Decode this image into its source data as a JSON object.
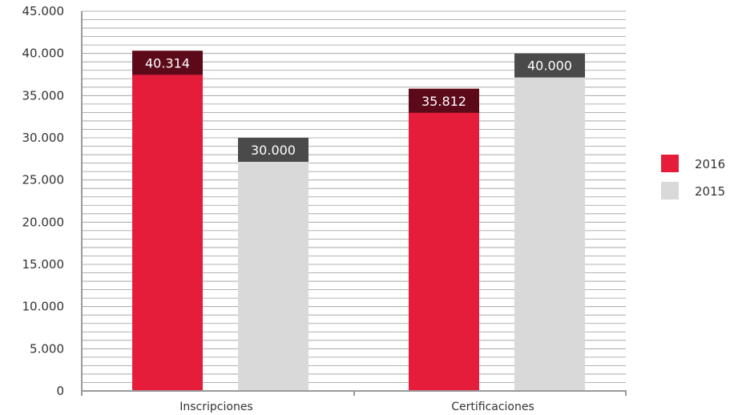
{
  "chart_data": {
    "type": "bar",
    "title": "",
    "xlabel": "",
    "ylabel": "",
    "categories": [
      "Inscripciones",
      "Certificaciones"
    ],
    "series": [
      {
        "name": "2016",
        "values": [
          40314,
          35812
        ],
        "labels": [
          "40.314",
          "35.812"
        ],
        "color": "#e51d3a",
        "label_bg": "#5c0a1a"
      },
      {
        "name": "2015",
        "values": [
          30000,
          40000
        ],
        "labels": [
          "30.000",
          "40.000"
        ],
        "color": "#d9d9d9",
        "label_bg": "#4a4a4a"
      }
    ],
    "ylim": [
      0,
      45000
    ],
    "yticks": [
      0,
      5000,
      10000,
      15000,
      20000,
      25000,
      30000,
      35000,
      40000,
      45000
    ],
    "ytick_labels": [
      "0",
      "5.000",
      "10.000",
      "15.000",
      "20.000",
      "25.000",
      "30.000",
      "35.000",
      "40.000",
      "45.000"
    ],
    "minor_grid_step": 1000,
    "grid": true,
    "legend": {
      "position": "right",
      "entries": [
        "2016",
        "2015"
      ]
    }
  }
}
